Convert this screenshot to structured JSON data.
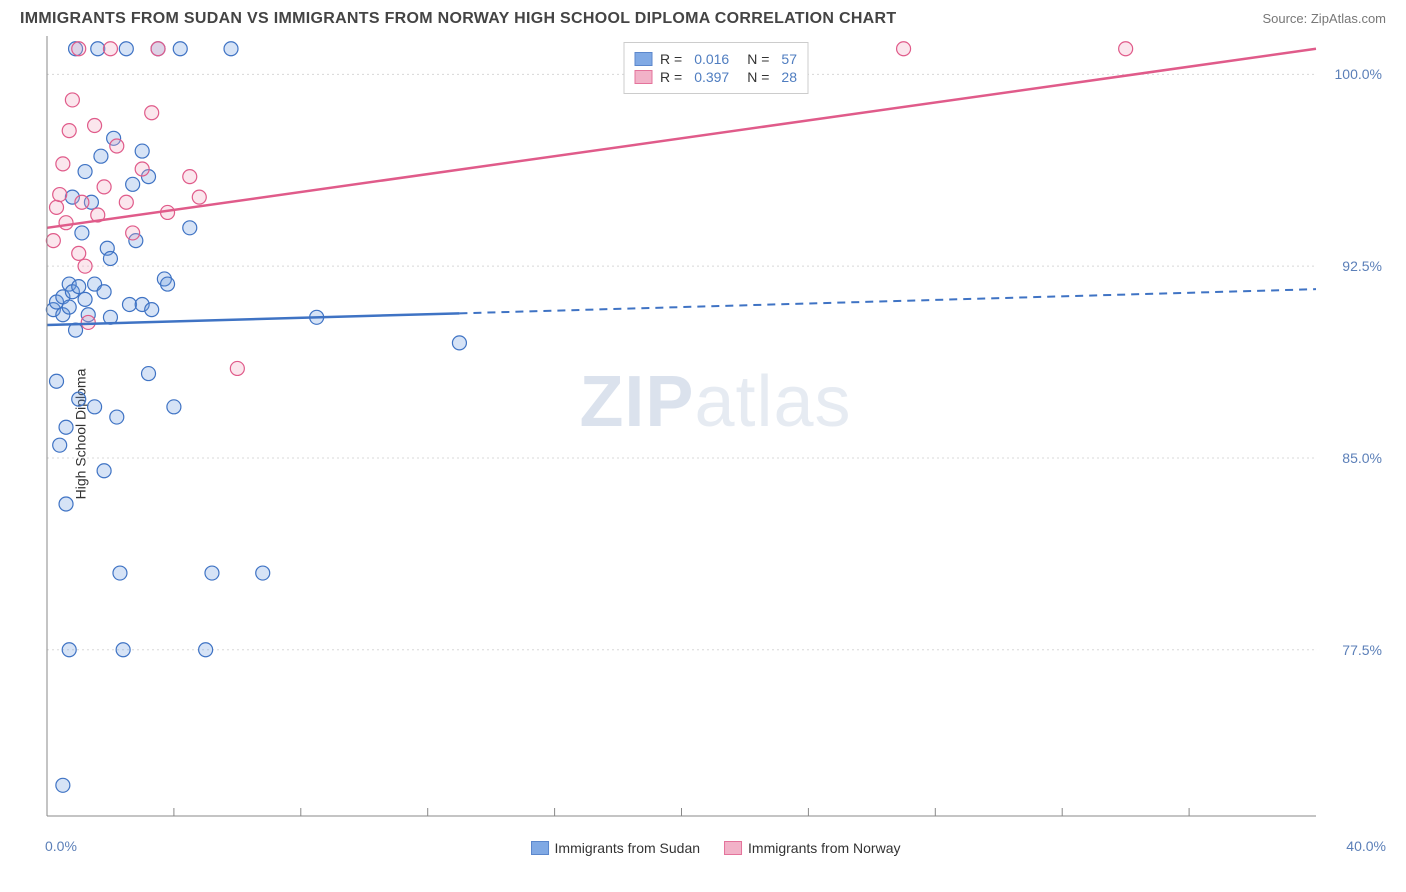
{
  "title": "IMMIGRANTS FROM SUDAN VS IMMIGRANTS FROM NORWAY HIGH SCHOOL DIPLOMA CORRELATION CHART",
  "source_label": "Source: ZipAtlas.com",
  "watermark_prefix": "ZIP",
  "watermark_suffix": "atlas",
  "chart": {
    "type": "scatter",
    "y_axis_title": "High School Diploma",
    "x_axis_title": "",
    "xlim": [
      0.0,
      40.0
    ],
    "ylim": [
      71.0,
      101.5
    ],
    "x_range_labels": [
      "0.0%",
      "40.0%"
    ],
    "y_ticks": [
      77.5,
      85.0,
      92.5,
      100.0
    ],
    "y_tick_labels": [
      "77.5%",
      "85.0%",
      "92.5%",
      "100.0%"
    ],
    "x_minor_ticks": [
      4,
      8,
      12,
      16,
      20,
      24,
      28,
      32,
      36
    ],
    "grid_color": "#d8d8d8",
    "axis_color": "#888888",
    "background_color": "#ffffff",
    "tick_label_color": "#5b7fb8",
    "marker_radius": 7,
    "marker_stroke_width": 1.2,
    "marker_fill_opacity": 0.28,
    "series": [
      {
        "id": "sudan",
        "label": "Immigrants from Sudan",
        "color": "#6a9be0",
        "stroke": "#3f73c4",
        "R": "0.016",
        "N": "57",
        "trend": {
          "x1": 0.0,
          "y1": 90.2,
          "x2": 40.0,
          "y2": 91.6,
          "solid_until_x": 13.0
        },
        "points": [
          [
            0.2,
            90.8
          ],
          [
            0.3,
            91.1
          ],
          [
            0.3,
            88.0
          ],
          [
            0.4,
            85.5
          ],
          [
            0.5,
            91.3
          ],
          [
            0.5,
            90.6
          ],
          [
            0.6,
            86.2
          ],
          [
            0.6,
            83.2
          ],
          [
            0.7,
            91.8
          ],
          [
            0.7,
            90.9
          ],
          [
            0.7,
            77.5
          ],
          [
            0.8,
            95.2
          ],
          [
            0.8,
            91.5
          ],
          [
            0.9,
            90.0
          ],
          [
            1.0,
            91.7
          ],
          [
            1.0,
            87.3
          ],
          [
            1.1,
            93.8
          ],
          [
            1.2,
            96.2
          ],
          [
            1.2,
            91.2
          ],
          [
            1.3,
            90.6
          ],
          [
            1.4,
            95.0
          ],
          [
            1.5,
            91.8
          ],
          [
            1.5,
            87.0
          ],
          [
            1.6,
            101.0
          ],
          [
            1.7,
            96.8
          ],
          [
            1.8,
            91.5
          ],
          [
            1.8,
            84.5
          ],
          [
            1.9,
            93.2
          ],
          [
            2.0,
            92.8
          ],
          [
            2.0,
            90.5
          ],
          [
            2.1,
            97.5
          ],
          [
            2.2,
            86.6
          ],
          [
            2.3,
            80.5
          ],
          [
            2.4,
            77.5
          ],
          [
            2.5,
            101.0
          ],
          [
            2.6,
            91.0
          ],
          [
            2.7,
            95.7
          ],
          [
            2.8,
            93.5
          ],
          [
            3.0,
            91.0
          ],
          [
            3.0,
            97.0
          ],
          [
            3.2,
            96.0
          ],
          [
            3.2,
            88.3
          ],
          [
            3.3,
            90.8
          ],
          [
            3.5,
            101.0
          ],
          [
            3.7,
            92.0
          ],
          [
            3.8,
            91.8
          ],
          [
            4.0,
            87.0
          ],
          [
            4.2,
            101.0
          ],
          [
            4.5,
            94.0
          ],
          [
            5.0,
            77.5
          ],
          [
            5.2,
            80.5
          ],
          [
            5.8,
            101.0
          ],
          [
            6.8,
            80.5
          ],
          [
            8.5,
            90.5
          ],
          [
            13.0,
            89.5
          ],
          [
            0.5,
            72.2
          ],
          [
            0.9,
            101.0
          ]
        ]
      },
      {
        "id": "norway",
        "label": "Immigrants from Norway",
        "color": "#f0a5bf",
        "stroke": "#e05b8a",
        "R": "0.397",
        "N": "28",
        "trend": {
          "x1": 0.0,
          "y1": 94.0,
          "x2": 40.0,
          "y2": 101.0,
          "solid_until_x": 40.0
        },
        "points": [
          [
            0.2,
            93.5
          ],
          [
            0.3,
            94.8
          ],
          [
            0.4,
            95.3
          ],
          [
            0.5,
            96.5
          ],
          [
            0.6,
            94.2
          ],
          [
            0.7,
            97.8
          ],
          [
            0.8,
            99.0
          ],
          [
            1.0,
            101.0
          ],
          [
            1.0,
            93.0
          ],
          [
            1.1,
            95.0
          ],
          [
            1.2,
            92.5
          ],
          [
            1.3,
            90.3
          ],
          [
            1.5,
            98.0
          ],
          [
            1.6,
            94.5
          ],
          [
            1.8,
            95.6
          ],
          [
            2.0,
            101.0
          ],
          [
            2.2,
            97.2
          ],
          [
            2.5,
            95.0
          ],
          [
            2.7,
            93.8
          ],
          [
            3.0,
            96.3
          ],
          [
            3.3,
            98.5
          ],
          [
            3.5,
            101.0
          ],
          [
            3.8,
            94.6
          ],
          [
            4.5,
            96.0
          ],
          [
            4.8,
            95.2
          ],
          [
            6.0,
            88.5
          ],
          [
            27.0,
            101.0
          ],
          [
            34.0,
            101.0
          ]
        ]
      }
    ]
  }
}
